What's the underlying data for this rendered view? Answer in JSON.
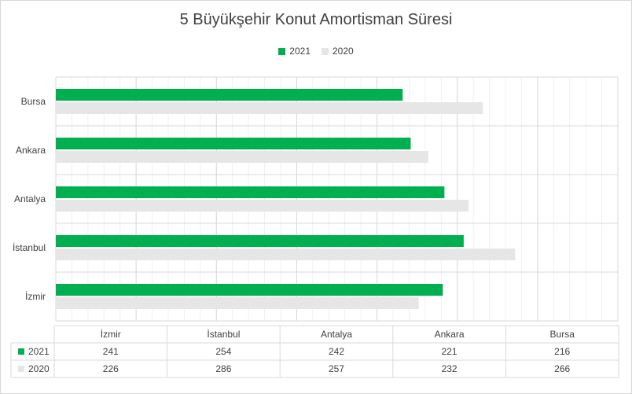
{
  "chart_data": {
    "type": "bar",
    "orientation": "horizontal",
    "title": "5 Büyükşehir Konut Amortisman Süresi",
    "categories": [
      "İzmir",
      "İstanbul",
      "Antalya",
      "Ankara",
      "Bursa"
    ],
    "series": [
      {
        "name": "2021",
        "values": [
          241,
          254,
          242,
          221,
          216
        ],
        "color": "#00b050"
      },
      {
        "name": "2020",
        "values": [
          226,
          286,
          257,
          232,
          266
        ],
        "color": "#e7e6e6"
      }
    ],
    "xlim": [
      0,
      350
    ],
    "grid": true,
    "legend_position": "top",
    "data_table": true
  }
}
